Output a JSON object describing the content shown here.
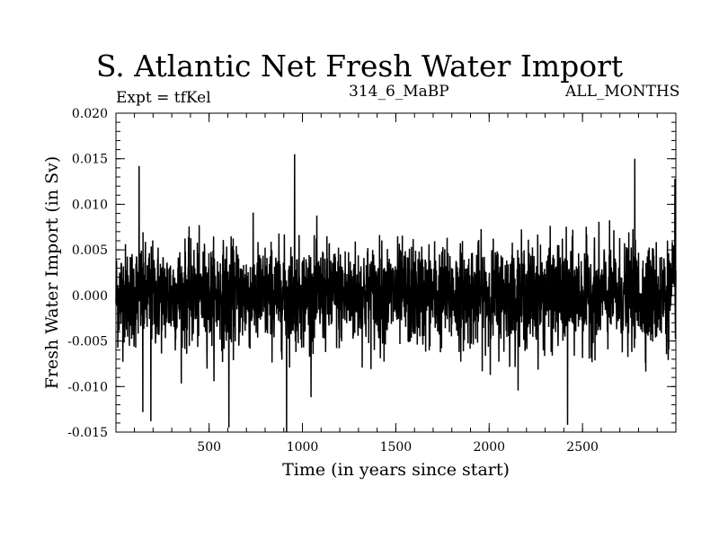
{
  "chart_data": {
    "type": "line",
    "title": "S. Atlantic Net Fresh Water Import",
    "subtitle_left": "Expt = tfKel",
    "subtitle_center": "314_6_MaBP",
    "subtitle_right": "ALL_MONTHS",
    "xlabel": "Time (in years since start)",
    "ylabel": "Fresh Water Import (in Sv)",
    "xlim": [
      1,
      3000
    ],
    "ylim": [
      -0.015,
      0.02
    ],
    "x_ticks": [
      500,
      1000,
      1500,
      2000,
      2500
    ],
    "y_ticks": [
      "-0.015",
      "-0.010",
      "-0.005",
      "0.000",
      "0.005",
      "0.010",
      "0.015",
      "0.020"
    ],
    "y_minor_step": 0.001,
    "x_minor_step": 100,
    "grid": false,
    "series_color": "#000000",
    "series_summary": {
      "mean": 0.0,
      "typical_min": -0.005,
      "typical_max": 0.005,
      "max": 0.0155,
      "min": -0.015
    },
    "notable_points": [
      {
        "x": 125,
        "y": 0.0142
      },
      {
        "x": 958,
        "y": 0.0155
      },
      {
        "x": 2780,
        "y": 0.015
      },
      {
        "x": 2995,
        "y": 0.0128
      },
      {
        "x": 188,
        "y": -0.0138
      },
      {
        "x": 606,
        "y": -0.0145
      },
      {
        "x": 915,
        "y": -0.015
      },
      {
        "x": 2420,
        "y": -0.0142
      },
      {
        "x": 145,
        "y": -0.0128
      }
    ]
  }
}
